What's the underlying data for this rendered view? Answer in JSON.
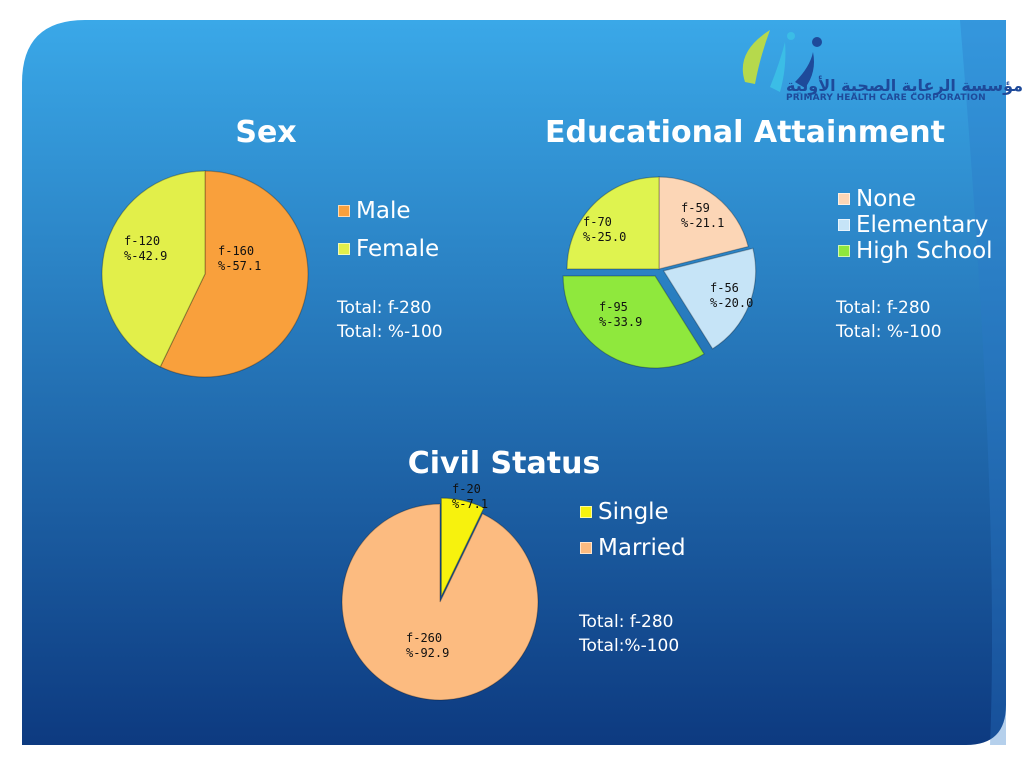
{
  "logo": {
    "arabic_name": "مؤسسة الرعاية الصحية الأولية",
    "english_name": "PRIMARY HEALTH CARE CORPORATION"
  },
  "colors": {
    "background_light": "#3aa8e8",
    "background_dark": "#0d3a80",
    "corner_light": "#c8c8c8",
    "title_text": "#ffffff",
    "label_text": "#111111"
  },
  "chart_data": [
    {
      "type": "pie",
      "title": "Sex",
      "categories": [
        "Male",
        "Female"
      ],
      "values": [
        160,
        120
      ],
      "percent": [
        57.1,
        42.9
      ],
      "labels": [
        [
          "f-160",
          "%-57.1"
        ],
        [
          "f-120",
          "%-42.9"
        ]
      ],
      "colors": [
        "#f9a03c",
        "#e2ef4a"
      ],
      "legend_position": "right",
      "totals": [
        "Total: f-280",
        "Total: %-100"
      ]
    },
    {
      "type": "pie",
      "title": "Educational Attainment",
      "categories": [
        "None",
        "Elementary",
        "High School",
        ""
      ],
      "values": [
        59,
        56,
        95,
        70
      ],
      "percent": [
        21.1,
        20.0,
        33.9,
        25.0
      ],
      "labels": [
        [
          "f-59",
          "%-21.1"
        ],
        [
          "f-56",
          "%-20.0"
        ],
        [
          "f-95",
          "%-33.9"
        ],
        [
          "f-70",
          "%-25.0"
        ]
      ],
      "colors": [
        "#fcd6b6",
        "#c6e4f7",
        "#8fe83d",
        "#dff34f"
      ],
      "legend_position": "right",
      "totals": [
        "Total: f-280",
        "Total: %-100"
      ]
    },
    {
      "type": "pie",
      "title": "Civil Status",
      "categories": [
        "Single",
        "Married"
      ],
      "values": [
        20,
        260
      ],
      "percent": [
        7.1,
        92.9
      ],
      "labels": [
        [
          "f-20",
          "%-7.1"
        ],
        [
          "f-260",
          "%-92.9"
        ]
      ],
      "colors": [
        "#f7f20d",
        "#fcbb80"
      ],
      "legend_position": "right",
      "totals": [
        "Total: f-280",
        "Total:%-100"
      ]
    }
  ]
}
